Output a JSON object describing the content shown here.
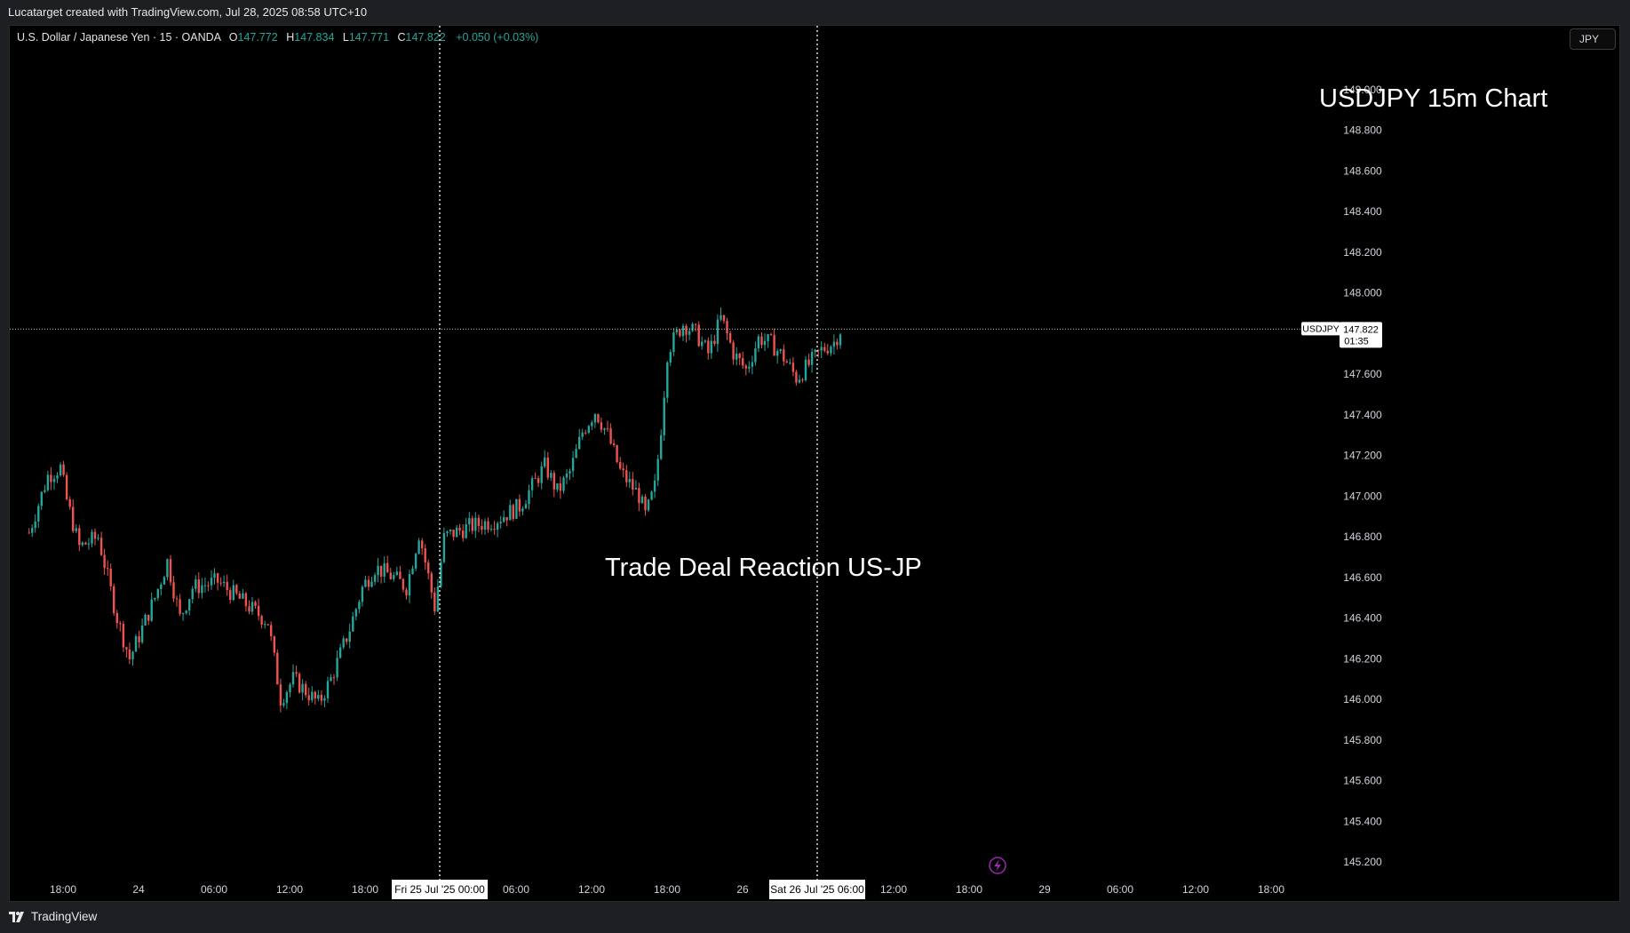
{
  "header": {
    "attribution": "Lucatarget created with TradingView.com, Jul 28, 2025 08:58 UTC+10"
  },
  "symbol_info": {
    "name": "U.S. Dollar / Japanese Yen · 15 · OANDA",
    "open_label": "O",
    "open": "147.772",
    "high_label": "H",
    "high": "147.834",
    "low_label": "L",
    "low": "147.771",
    "close_label": "C",
    "close": "147.822",
    "change": "+0.050 (+0.03%)"
  },
  "currency_button": "JPY",
  "annotations": {
    "title": "USDJPY 15m Chart",
    "note": "Trade Deal Reaction US-JP"
  },
  "price_label": {
    "symbol": "USDJPY",
    "price": "147.822",
    "countdown": "01:35"
  },
  "footer": {
    "logo_text": "TradingView"
  },
  "colors": {
    "up": "#26a69a",
    "down": "#ef5350",
    "background": "#000000"
  },
  "icons": {
    "replay": "lightning-icon"
  },
  "chart_data": {
    "type": "candlestick",
    "title": "USDJPY 15m Chart",
    "ylim": [
      145.1,
      149.15
    ],
    "y_ticks": [
      "149.000",
      "148.800",
      "148.600",
      "148.400",
      "148.200",
      "148.000",
      "147.600",
      "147.400",
      "147.200",
      "147.000",
      "146.800",
      "146.600",
      "146.400",
      "146.200",
      "146.000",
      "145.800",
      "145.600",
      "145.400",
      "145.200"
    ],
    "x_ticks": [
      "18:00",
      "24",
      "06:00",
      "12:00",
      "18:00",
      "Fri 25 Jul '25   00:00",
      "06:00",
      "12:00",
      "18:00",
      "26",
      "Sat 26 Jul '25   06:00",
      "12:00",
      "18:00",
      "29",
      "06:00",
      "12:00",
      "18:00"
    ],
    "grid": false,
    "last_price": 147.822,
    "vertical_markers": [
      "Fri 25 Jul '25 00:00",
      "Sat 26 Jul '25 06:00"
    ],
    "price_path": [
      {
        "t": "Jul 23 16:00",
        "price": 146.82
      },
      {
        "t": "Jul 23 17:30",
        "price": 147.1
      },
      {
        "t": "Jul 23 18:30",
        "price": 147.14
      },
      {
        "t": "Jul 23 19:00",
        "price": 146.98
      },
      {
        "t": "Jul 23 20:00",
        "price": 146.75
      },
      {
        "t": "Jul 23 21:30",
        "price": 146.8
      },
      {
        "t": "Jul 23 23:00",
        "price": 146.4
      },
      {
        "t": "Jul 24 00:00",
        "price": 146.2
      },
      {
        "t": "Jul 24 02:00",
        "price": 146.5
      },
      {
        "t": "Jul 24 03:00",
        "price": 146.68
      },
      {
        "t": "Jul 24 04:00",
        "price": 146.4
      },
      {
        "t": "Jul 24 05:00",
        "price": 146.55
      },
      {
        "t": "Jul 24 07:00",
        "price": 146.58
      },
      {
        "t": "Jul 24 09:00",
        "price": 146.48
      },
      {
        "t": "Jul 24 11:00",
        "price": 146.38
      },
      {
        "t": "Jul 24 12:00",
        "price": 146.0
      },
      {
        "t": "Jul 24 13:00",
        "price": 146.1
      },
      {
        "t": "Jul 24 15:00",
        "price": 145.98
      },
      {
        "t": "Jul 24 16:00",
        "price": 146.1
      },
      {
        "t": "Jul 24 17:30",
        "price": 146.35
      },
      {
        "t": "Jul 24 18:30",
        "price": 146.55
      },
      {
        "t": "Jul 24 19:30",
        "price": 146.65
      },
      {
        "t": "Jul 24 21:00",
        "price": 146.6
      },
      {
        "t": "Jul 24 22:00",
        "price": 146.55
      },
      {
        "t": "Jul 24 23:00",
        "price": 146.82
      },
      {
        "t": "Jul 24 23:45",
        "price": 146.6
      },
      {
        "t": "Jul 25 00:15",
        "price": 146.45
      },
      {
        "t": "Jul 25 01:00",
        "price": 146.8
      },
      {
        "t": "Jul 25 03:00",
        "price": 146.85
      },
      {
        "t": "Jul 25 05:00",
        "price": 146.88
      },
      {
        "t": "Jul 25 07:00",
        "price": 146.95
      },
      {
        "t": "Jul 25 09:00",
        "price": 147.15
      },
      {
        "t": "Jul 25 10:00",
        "price": 147.02
      },
      {
        "t": "Jul 25 11:00",
        "price": 147.12
      },
      {
        "t": "Jul 25 12:00",
        "price": 147.32
      },
      {
        "t": "Jul 25 13:00",
        "price": 147.42
      },
      {
        "t": "Jul 25 14:00",
        "price": 147.3
      },
      {
        "t": "Jul 25 15:00",
        "price": 147.12
      },
      {
        "t": "Jul 25 16:30",
        "price": 147.0
      },
      {
        "t": "Jul 25 17:00",
        "price": 146.9
      },
      {
        "t": "Jul 25 17:45",
        "price": 147.05
      },
      {
        "t": "Jul 25 18:15",
        "price": 147.35
      },
      {
        "t": "Jul 25 18:45",
        "price": 147.72
      },
      {
        "t": "Jul 25 20:00",
        "price": 147.85
      },
      {
        "t": "Jul 25 21:00",
        "price": 147.8
      },
      {
        "t": "Jul 25 22:00",
        "price": 147.7
      },
      {
        "t": "Jul 25 23:00",
        "price": 147.88
      },
      {
        "t": "Jul 26 00:00",
        "price": 147.7
      },
      {
        "t": "Jul 26 01:00",
        "price": 147.62
      },
      {
        "t": "Jul 26 02:00",
        "price": 147.78
      },
      {
        "t": "Jul 26 03:00",
        "price": 147.75
      },
      {
        "t": "Jul 26 04:00",
        "price": 147.68
      },
      {
        "t": "Jul 26 05:00",
        "price": 147.58
      },
      {
        "t": "Jul 26 06:00",
        "price": 147.65
      },
      {
        "t": "Jul 26 07:00",
        "price": 147.72
      },
      {
        "t": "Jul 26 08:00",
        "price": 147.76
      },
      {
        "t": "Jul 26 08:30",
        "price": 147.822
      }
    ]
  }
}
